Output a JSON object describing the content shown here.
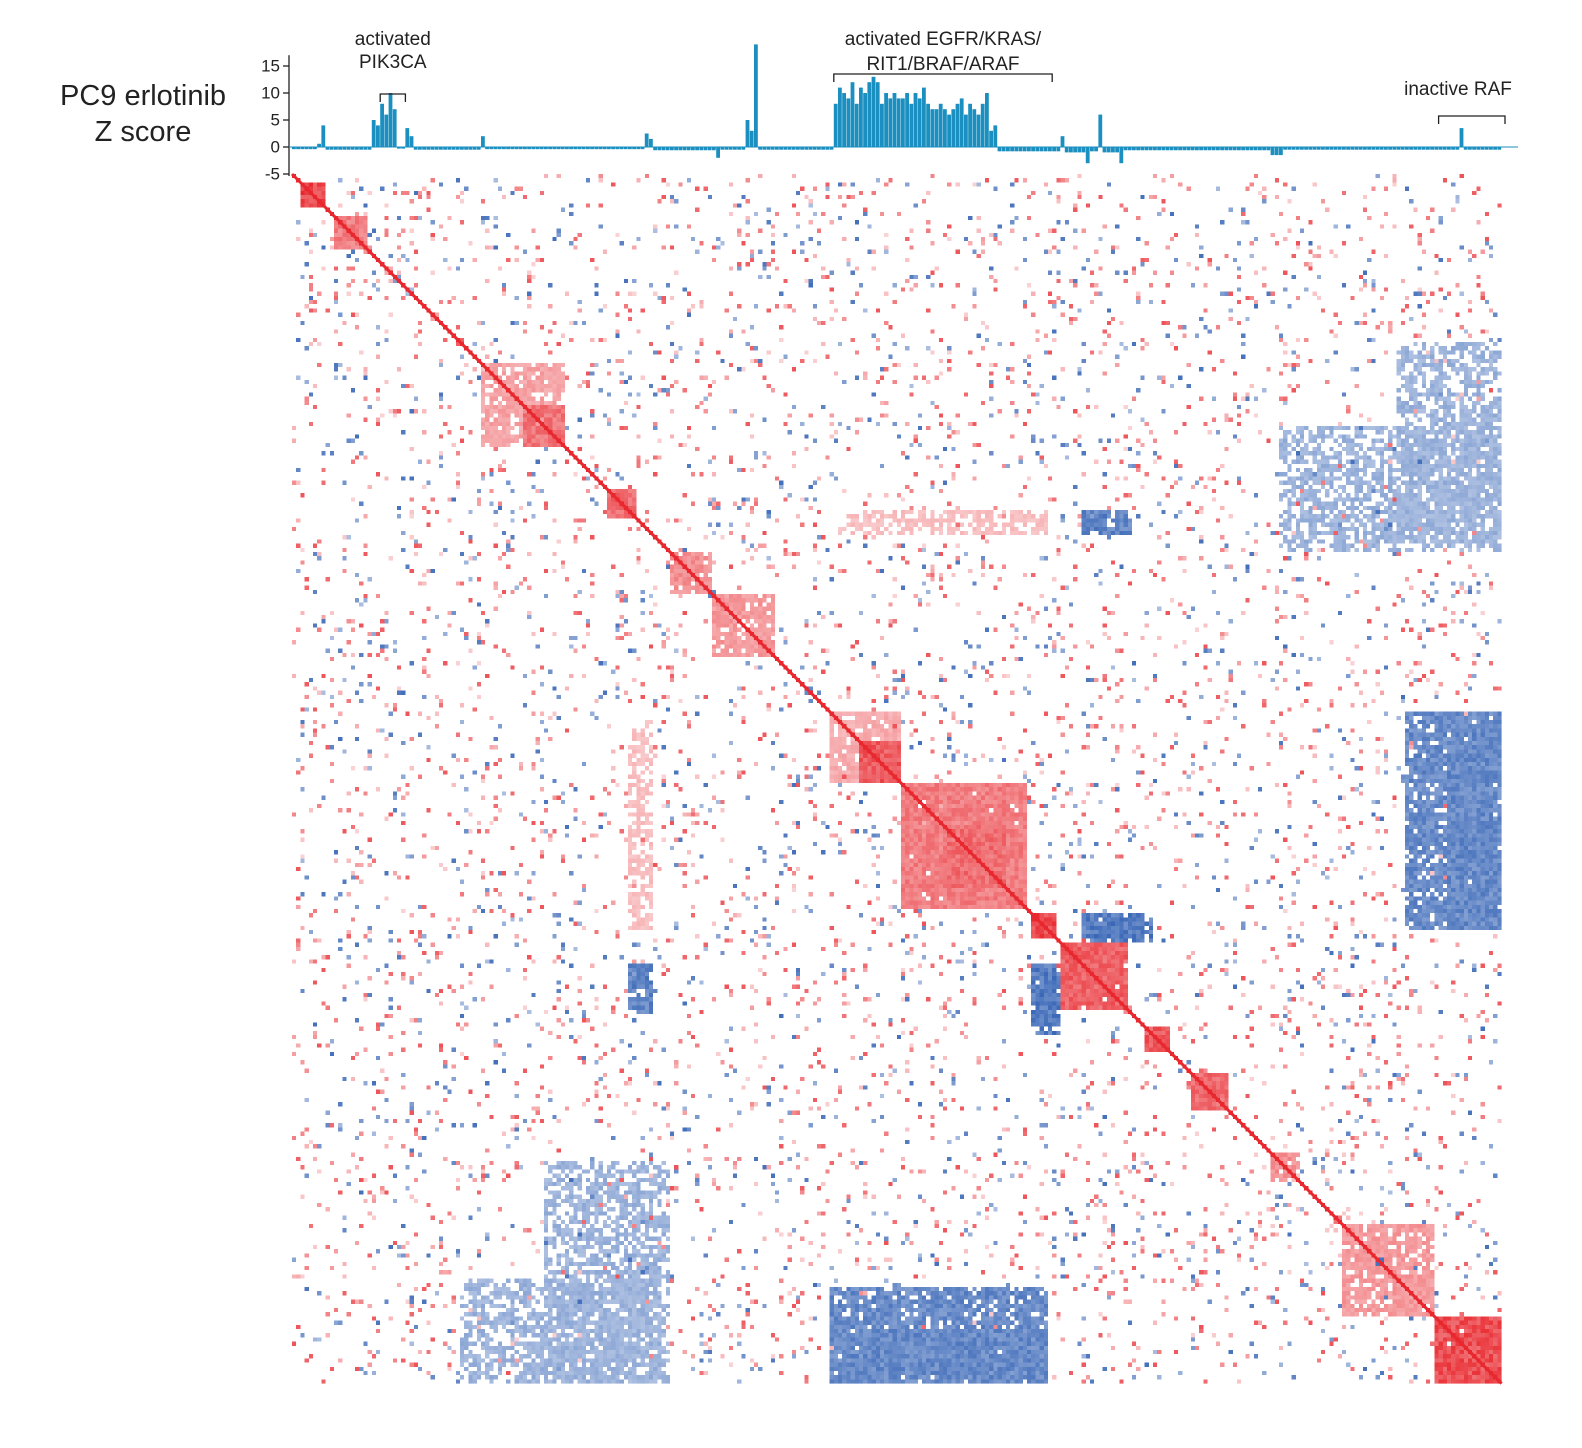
{
  "chart_data": [
    {
      "type": "bar",
      "title": "PC9 erlotinib",
      "ylabel_line1": "PC9 erlotinib",
      "ylabel_line2": "Z score",
      "ylim": [
        -5,
        17
      ],
      "yticks": [
        15,
        10,
        5,
        0,
        -5
      ],
      "ytick_labels": [
        "15",
        "10",
        "5",
        "0",
        "-5"
      ],
      "n_bars": 288,
      "bar_color": "#1a8fc0",
      "segments": [
        {
          "from": 0,
          "to": 6,
          "value": -0.4
        },
        {
          "from": 6,
          "to": 7,
          "value": 0.6
        },
        {
          "from": 7,
          "to": 8,
          "value": 4
        },
        {
          "from": 8,
          "to": 19,
          "value": -0.5
        },
        {
          "from": 19,
          "to": 20,
          "value": 5
        },
        {
          "from": 20,
          "to": 21,
          "value": 4
        },
        {
          "from": 21,
          "to": 22,
          "value": 8
        },
        {
          "from": 22,
          "to": 23,
          "value": 6
        },
        {
          "from": 23,
          "to": 24,
          "value": 10
        },
        {
          "from": 24,
          "to": 25,
          "value": 7
        },
        {
          "from": 25,
          "to": 27,
          "value": -0.3
        },
        {
          "from": 27,
          "to": 28,
          "value": 3.5
        },
        {
          "from": 28,
          "to": 29,
          "value": 2
        },
        {
          "from": 29,
          "to": 45,
          "value": -0.5
        },
        {
          "from": 45,
          "to": 46,
          "value": 2
        },
        {
          "from": 46,
          "to": 84,
          "value": -0.4
        },
        {
          "from": 84,
          "to": 85,
          "value": 2.5
        },
        {
          "from": 85,
          "to": 86,
          "value": 1.5
        },
        {
          "from": 86,
          "to": 101,
          "value": -0.6
        },
        {
          "from": 101,
          "to": 102,
          "value": -2
        },
        {
          "from": 102,
          "to": 108,
          "value": -0.5
        },
        {
          "from": 108,
          "to": 109,
          "value": 5
        },
        {
          "from": 109,
          "to": 110,
          "value": 3
        },
        {
          "from": 110,
          "to": 111,
          "value": 19
        },
        {
          "from": 111,
          "to": 129,
          "value": -0.5
        },
        {
          "from": 129,
          "to": 130,
          "value": 8
        },
        {
          "from": 130,
          "to": 131,
          "value": 11
        },
        {
          "from": 131,
          "to": 132,
          "value": 10
        },
        {
          "from": 132,
          "to": 133,
          "value": 9
        },
        {
          "from": 133,
          "to": 134,
          "value": 12
        },
        {
          "from": 134,
          "to": 135,
          "value": 8
        },
        {
          "from": 135,
          "to": 136,
          "value": 11
        },
        {
          "from": 136,
          "to": 137,
          "value": 10
        },
        {
          "from": 137,
          "to": 138,
          "value": 12
        },
        {
          "from": 138,
          "to": 139,
          "value": 13
        },
        {
          "from": 139,
          "to": 140,
          "value": 12
        },
        {
          "from": 140,
          "to": 141,
          "value": 8
        },
        {
          "from": 141,
          "to": 142,
          "value": 10
        },
        {
          "from": 142,
          "to": 143,
          "value": 9
        },
        {
          "from": 143,
          "to": 144,
          "value": 10
        },
        {
          "from": 144,
          "to": 145,
          "value": 9
        },
        {
          "from": 145,
          "to": 146,
          "value": 9
        },
        {
          "from": 146,
          "to": 147,
          "value": 10
        },
        {
          "from": 147,
          "to": 148,
          "value": 8
        },
        {
          "from": 148,
          "to": 149,
          "value": 10
        },
        {
          "from": 149,
          "to": 150,
          "value": 9
        },
        {
          "from": 150,
          "to": 151,
          "value": 11
        },
        {
          "from": 151,
          "to": 152,
          "value": 8
        },
        {
          "from": 152,
          "to": 153,
          "value": 7
        },
        {
          "from": 153,
          "to": 154,
          "value": 7
        },
        {
          "from": 154,
          "to": 155,
          "value": 8
        },
        {
          "from": 155,
          "to": 156,
          "value": 7
        },
        {
          "from": 156,
          "to": 157,
          "value": 6
        },
        {
          "from": 157,
          "to": 158,
          "value": 7
        },
        {
          "from": 158,
          "to": 159,
          "value": 8
        },
        {
          "from": 159,
          "to": 160,
          "value": 9
        },
        {
          "from": 160,
          "to": 161,
          "value": 6
        },
        {
          "from": 161,
          "to": 162,
          "value": 8
        },
        {
          "from": 162,
          "to": 163,
          "value": 7
        },
        {
          "from": 163,
          "to": 164,
          "value": 6
        },
        {
          "from": 164,
          "to": 165,
          "value": 8
        },
        {
          "from": 165,
          "to": 166,
          "value": 10
        },
        {
          "from": 166,
          "to": 167,
          "value": 3
        },
        {
          "from": 167,
          "to": 168,
          "value": 4
        },
        {
          "from": 168,
          "to": 183,
          "value": -0.8
        },
        {
          "from": 183,
          "to": 184,
          "value": 2
        },
        {
          "from": 184,
          "to": 189,
          "value": -1
        },
        {
          "from": 189,
          "to": 190,
          "value": -3
        },
        {
          "from": 190,
          "to": 192,
          "value": -0.8
        },
        {
          "from": 192,
          "to": 193,
          "value": 6
        },
        {
          "from": 193,
          "to": 197,
          "value": -1
        },
        {
          "from": 197,
          "to": 198,
          "value": -3
        },
        {
          "from": 198,
          "to": 233,
          "value": -0.6
        },
        {
          "from": 233,
          "to": 236,
          "value": -1.5
        },
        {
          "from": 236,
          "to": 278,
          "value": -0.5
        },
        {
          "from": 278,
          "to": 279,
          "value": 3.5
        },
        {
          "from": 279,
          "to": 288,
          "value": -0.5
        }
      ]
    },
    {
      "type": "heatmap",
      "title": "",
      "n_rows": 288,
      "n_cols": 288,
      "symmetric": true,
      "positive_color": "#e8282e",
      "negative_color": "#2f5fb3",
      "background_color": "#ffffff",
      "diagonal_value": 1,
      "blocks": [
        {
          "r": [
            2,
            8
          ],
          "c": [
            2,
            8
          ],
          "value": 1
        },
        {
          "r": [
            10,
            18
          ],
          "c": [
            10,
            18
          ],
          "value": 0.7
        },
        {
          "r": [
            45,
            65
          ],
          "c": [
            45,
            65
          ],
          "value": 0.5
        },
        {
          "r": [
            55,
            65
          ],
          "c": [
            55,
            65
          ],
          "value": 0.75
        },
        {
          "r": [
            75,
            82
          ],
          "c": [
            75,
            82
          ],
          "value": 0.8
        },
        {
          "r": [
            90,
            100
          ],
          "c": [
            90,
            100
          ],
          "value": 0.6
        },
        {
          "r": [
            100,
            115
          ],
          "c": [
            100,
            115
          ],
          "value": 0.55
        },
        {
          "r": [
            128,
            145
          ],
          "c": [
            128,
            145
          ],
          "value": 0.45
        },
        {
          "r": [
            135,
            145
          ],
          "c": [
            135,
            145
          ],
          "value": 0.9
        },
        {
          "r": [
            145,
            175
          ],
          "c": [
            145,
            175
          ],
          "value": 0.7
        },
        {
          "r": [
            155,
            170
          ],
          "c": [
            155,
            170
          ],
          "value": 0.8
        },
        {
          "r": [
            176,
            182
          ],
          "c": [
            176,
            182
          ],
          "value": 1
        },
        {
          "r": [
            183,
            199
          ],
          "c": [
            183,
            199
          ],
          "value": 0.85
        },
        {
          "r": [
            203,
            209
          ],
          "c": [
            203,
            209
          ],
          "value": 0.9
        },
        {
          "r": [
            214,
            223
          ],
          "c": [
            214,
            223
          ],
          "value": 0.8
        },
        {
          "r": [
            233,
            240
          ],
          "c": [
            233,
            240
          ],
          "value": 0.6
        },
        {
          "r": [
            250,
            272
          ],
          "c": [
            250,
            272
          ],
          "value": 0.55
        },
        {
          "r": [
            272,
            288
          ],
          "c": [
            272,
            288
          ],
          "value": 0.95
        },
        {
          "r": [
            176,
            182
          ],
          "c": [
            188,
            203
          ],
          "value": -0.95
        },
        {
          "r": [
            189,
            205
          ],
          "c": [
            177,
            183
          ],
          "value": -0.95
        },
        {
          "r": [
            128,
            180
          ],
          "c": [
            275,
            288
          ],
          "value": -0.85
        },
        {
          "r": [
            265,
            288
          ],
          "c": [
            128,
            180
          ],
          "value": -0.85
        },
        {
          "r": [
            80,
            86
          ],
          "c": [
            188,
            200
          ],
          "value": -0.9
        },
        {
          "r": [
            80,
            86
          ],
          "c": [
            130,
            180
          ],
          "value": 0.35
        },
        {
          "r": [
            40,
            88
          ],
          "c": [
            263,
            288
          ],
          "value": -0.55
        },
        {
          "r": [
            235,
            288
          ],
          "c": [
            60,
            90
          ],
          "value": -0.55
        }
      ],
      "annotations": [
        {
          "label_lines": [
            "activated",
            "PIK3CA"
          ],
          "bracket_cols": [
            21,
            27
          ]
        },
        {
          "label_lines": [
            "activated EGFR/KRAS/",
            "RIT1/BRAF/ARAF"
          ],
          "bracket_cols": [
            129,
            181
          ]
        },
        {
          "label_lines": [
            "inactive RAF"
          ],
          "bracket_cols": [
            273,
            291
          ]
        }
      ]
    }
  ]
}
